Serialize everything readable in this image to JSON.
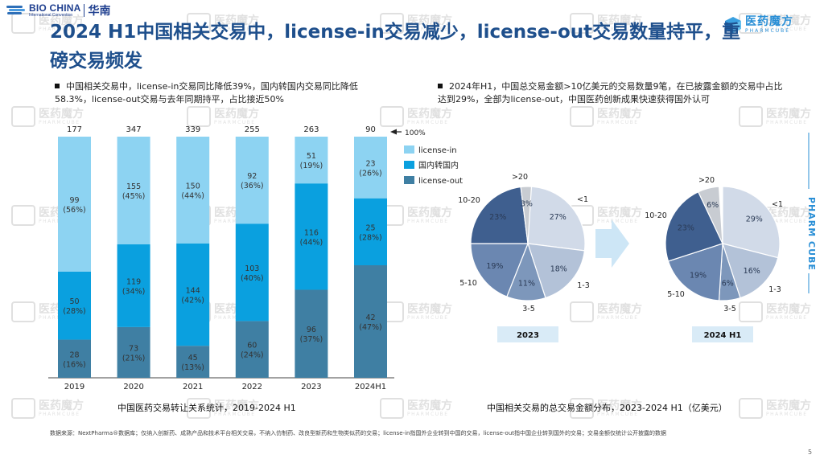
{
  "header": {
    "org_name": "BIO CHINA",
    "org_sub": "International Convention",
    "region": "华南",
    "brand_cn": "医药魔方",
    "brand_en": "PHARMCUBE",
    "side_vertical_text": "PHARM CUBE"
  },
  "title": "2024 H1中国相关交易中，license-in交易减少，license-out交易数量持平，重磅交易频发",
  "bullets": {
    "left": "中国相关交易中，license-in交易同比降低39%，国内转国内交易同比降低58.3%，license-out交易与去年同期持平，占比接近50%",
    "right": "2024年H1，中国总交易金额>10亿美元的交易数量9笔，在已披露金额的交易中占比达到29%，全部为license-out，中国医药创新成果快速获得国外认可"
  },
  "chart_data": [
    {
      "type": "bar",
      "stacked": true,
      "title": "中国医药交易转让关系统计，2019-2024 H1",
      "categories": [
        "2019",
        "2020",
        "2021",
        "2022",
        "2023",
        "2024H1"
      ],
      "totals": [
        "177",
        "347",
        "339",
        "255",
        "263",
        "90"
      ],
      "full_marker": "100%",
      "series": [
        {
          "name": "license-out",
          "color": "#3f7fa3",
          "values": [
            28,
            73,
            45,
            60,
            96,
            42
          ],
          "pct": [
            "16%",
            "21%",
            "13%",
            "24%",
            "37%",
            "47%"
          ]
        },
        {
          "name": "国内转国内",
          "color": "#0aa0df",
          "values": [
            50,
            119,
            144,
            103,
            116,
            25
          ],
          "pct": [
            "28%",
            "34%",
            "42%",
            "40%",
            "44%",
            "28%"
          ]
        },
        {
          "name": "license-in",
          "color": "#8dd3f2",
          "values": [
            99,
            155,
            150,
            92,
            51,
            23
          ],
          "pct": [
            "56%",
            "45%",
            "44%",
            "36%",
            "19%",
            "26%"
          ]
        }
      ],
      "legend": [
        "license-in",
        "国内转国内",
        "license-out"
      ],
      "legend_position": "right"
    },
    {
      "type": "pie",
      "title": "中国相关交易的总交易金额分布，2023-2024 H1（亿美元）",
      "charts": [
        {
          "label": "2023",
          "slices": [
            {
              "name": "<1",
              "pct": 27,
              "label": "27%",
              "color": "#d1dae8"
            },
            {
              "name": "1-3",
              "pct": 18,
              "label": "18%",
              "color": "#b3c2d8"
            },
            {
              "name": "3-5",
              "pct": 11,
              "label": "11%",
              "color": "#7d97bb"
            },
            {
              "name": "5-10",
              "pct": 19,
              "label": "19%",
              "color": "#6b87b1"
            },
            {
              "name": "10-20",
              "pct": 23,
              "label": "23%",
              "color": "#3f5f8f"
            },
            {
              "name": ">20",
              "pct": 3,
              "label": "3%",
              "color": "#c8ccd2"
            }
          ]
        },
        {
          "label": "2024 H1",
          "slices": [
            {
              "name": "<1",
              "pct": 29,
              "label": "29%",
              "color": "#d1dae8"
            },
            {
              "name": "1-3",
              "pct": 16,
              "label": "16%",
              "color": "#b3c2d8"
            },
            {
              "name": "3-5",
              "pct": 6,
              "label": "6%",
              "color": "#7d97bb"
            },
            {
              "name": "5-10",
              "pct": 19,
              "label": "19%",
              "color": "#6b87b1"
            },
            {
              "name": "10-20",
              "pct": 23,
              "label": "23%",
              "color": "#3f5f8f"
            },
            {
              "name": ">20",
              "pct": 6,
              "label": "6%",
              "color": "#c8ccd2"
            }
          ]
        }
      ]
    }
  ],
  "footnote": "数据来源：NextPharma®数据库；仅纳入创新药、成熟产品和技术平台相关交易，不纳入仿制药、改良型新药和生物类似药的交易；license-in指国外企业转到中国的交易，license-out指中国企业转到国外的交易；交易金额仅统计公开披露的数据",
  "page_number": "5",
  "colors": {
    "title": "#1e4f8c",
    "accent": "#2a8fd6"
  }
}
